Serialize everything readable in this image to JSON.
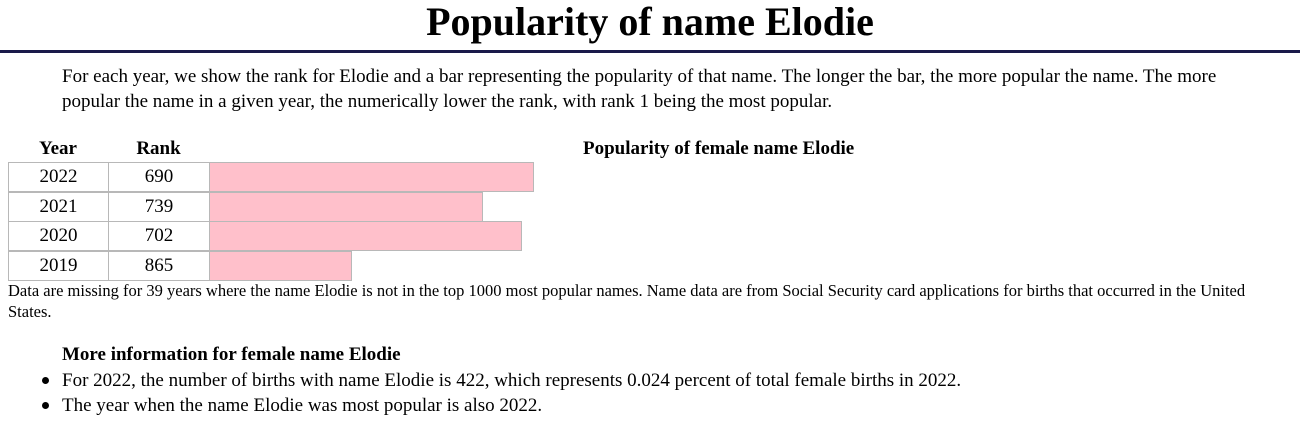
{
  "page": {
    "title": "Popularity of name Elodie",
    "intro": "For each year, we show the rank for Elodie and a bar representing the popularity of that name. The longer the bar, the more popular the name. The more popular the name in a given year, the numerically lower the rank, with rank 1 being the most popular."
  },
  "table": {
    "headers": {
      "year": "Year",
      "rank": "Rank"
    },
    "chart_title": "Popularity of female name Elodie",
    "rows": [
      {
        "year": "2022",
        "rank": "690"
      },
      {
        "year": "2021",
        "rank": "739"
      },
      {
        "year": "2020",
        "rank": "702"
      },
      {
        "year": "2019",
        "rank": "865"
      }
    ],
    "bar_color": "#ffc0cb"
  },
  "chart_data": {
    "type": "bar",
    "title": "Popularity of female name Elodie",
    "categories": [
      "2022",
      "2021",
      "2020",
      "2019"
    ],
    "values": [
      690,
      739,
      702,
      865
    ],
    "xlabel": "",
    "ylabel": ""
  },
  "note": "Data are missing for 39 years where the name Elodie is not in the top 1000 most popular names. Name data are from Social Security card applications for births that occurred in the United States.",
  "more_info": {
    "title": "More information for female name Elodie",
    "facts": [
      "For 2022, the number of births with name Elodie is 422, which represents 0.024 percent of total female births in 2022.",
      "The year when the name Elodie was most popular is also 2022."
    ]
  }
}
